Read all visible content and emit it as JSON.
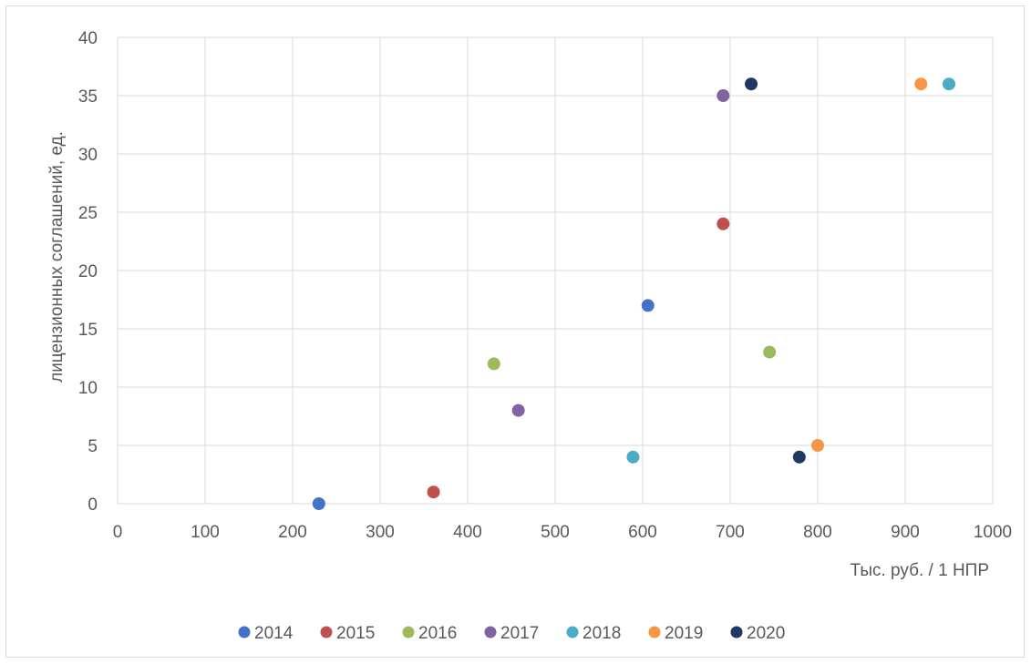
{
  "chart_data": {
    "type": "scatter",
    "title": "",
    "xlabel": "Тыс. руб. / 1 НПР",
    "ylabel": "лицензионных соглашений, ед.",
    "xlim": [
      0,
      1000
    ],
    "ylim": [
      0,
      40
    ],
    "xticks": [
      0,
      100,
      200,
      300,
      400,
      500,
      600,
      700,
      800,
      900,
      1000
    ],
    "yticks": [
      0,
      5,
      10,
      15,
      20,
      25,
      30,
      35,
      40
    ],
    "grid": true,
    "legend_position": "bottom",
    "series": [
      {
        "name": "2014",
        "color": "#4472C4",
        "points": [
          [
            230,
            0
          ],
          [
            606,
            17
          ]
        ]
      },
      {
        "name": "2015",
        "color": "#C0504D",
        "points": [
          [
            361,
            1
          ],
          [
            692,
            24
          ]
        ]
      },
      {
        "name": "2016",
        "color": "#9BBB59",
        "points": [
          [
            430,
            12
          ],
          [
            745,
            13
          ]
        ]
      },
      {
        "name": "2017",
        "color": "#8064A2",
        "points": [
          [
            458,
            8
          ],
          [
            692,
            35
          ]
        ]
      },
      {
        "name": "2018",
        "color": "#4BACC6",
        "points": [
          [
            589,
            4
          ],
          [
            950,
            36
          ]
        ]
      },
      {
        "name": "2019",
        "color": "#F79646",
        "points": [
          [
            800,
            5
          ],
          [
            918,
            36
          ]
        ]
      },
      {
        "name": "2020",
        "color": "#1F3864",
        "points": [
          [
            724,
            36
          ],
          [
            779,
            4
          ]
        ]
      }
    ]
  }
}
